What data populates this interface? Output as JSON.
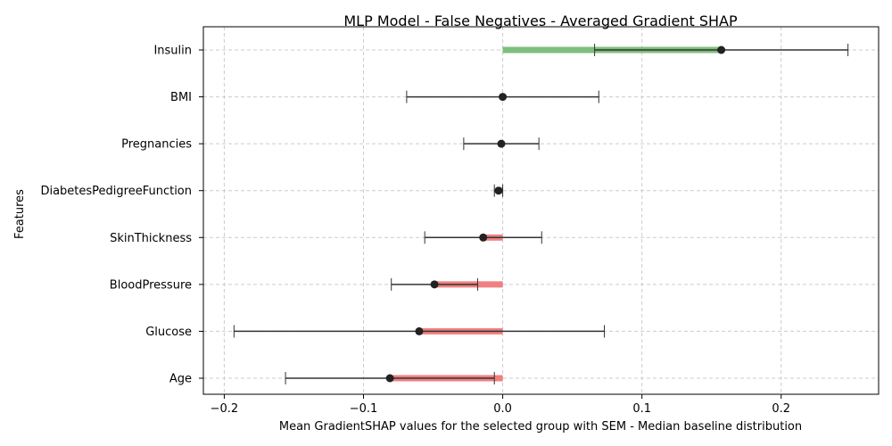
{
  "chart_data": {
    "type": "horizontal-bar-errorbar",
    "title": "MLP Model - False Negatives - Averaged Gradient SHAP",
    "xlabel": "Mean GradientSHAP values for the selected group with SEM - Median baseline distribution",
    "ylabel": "Features",
    "xlim": [
      -0.215,
      0.27
    ],
    "xticks": [
      -0.2,
      -0.1,
      0.0,
      0.1,
      0.2
    ],
    "xtick_labels": [
      "−0.2",
      "−0.1",
      "0.0",
      "0.1",
      "0.2"
    ],
    "grid": true,
    "categories": [
      "Insulin",
      "BMI",
      "Pregnancies",
      "DiabetesPedigreeFunction",
      "SkinThickness",
      "BloodPressure",
      "Glucose",
      "Age"
    ],
    "values": [
      0.157,
      0.0,
      -0.001,
      -0.003,
      -0.014,
      -0.049,
      -0.06,
      -0.081
    ],
    "errors": [
      0.091,
      0.069,
      0.027,
      0.003,
      0.042,
      0.031,
      0.133,
      0.075
    ],
    "positive_color": "#7dbf7d",
    "negative_color": "#f08080"
  }
}
